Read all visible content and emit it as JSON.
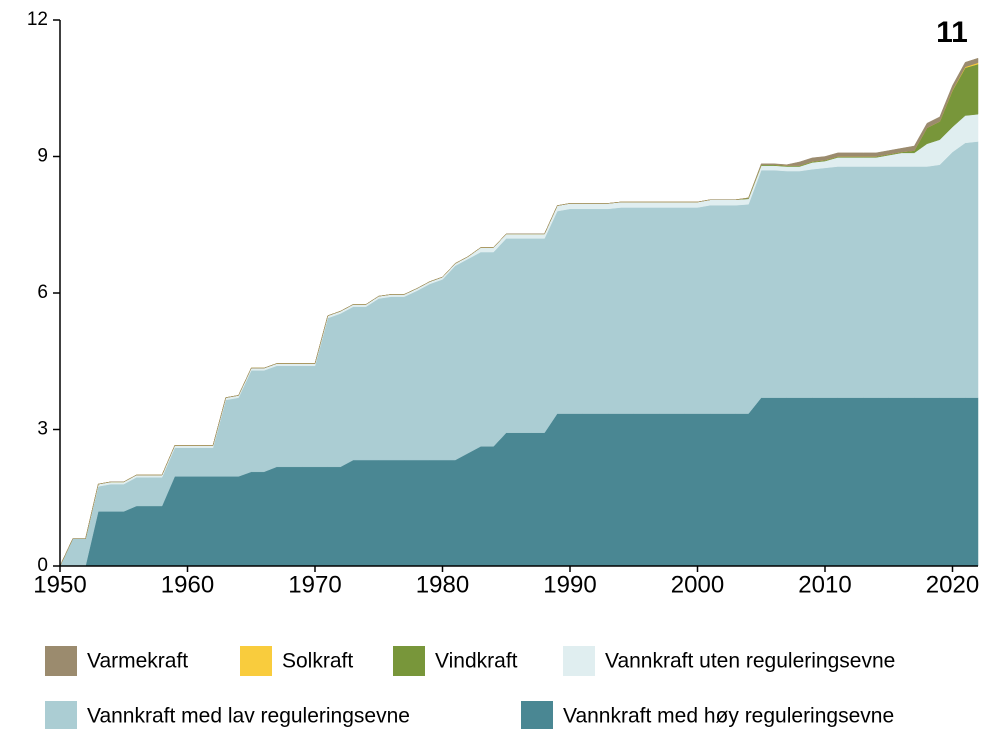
{
  "chart_data": {
    "type": "stacked_area",
    "annotation": "11",
    "x": [
      1950,
      1951,
      1952,
      1953,
      1954,
      1955,
      1956,
      1957,
      1958,
      1959,
      1960,
      1961,
      1962,
      1963,
      1964,
      1965,
      1966,
      1967,
      1968,
      1969,
      1970,
      1971,
      1972,
      1973,
      1974,
      1975,
      1976,
      1977,
      1978,
      1979,
      1980,
      1981,
      1982,
      1983,
      1984,
      1985,
      1986,
      1987,
      1988,
      1989,
      1990,
      1991,
      1992,
      1993,
      1994,
      1995,
      1996,
      1997,
      1998,
      1999,
      2000,
      2001,
      2002,
      2003,
      2004,
      2005,
      2006,
      2007,
      2008,
      2009,
      2010,
      2011,
      2012,
      2013,
      2014,
      2015,
      2016,
      2017,
      2018,
      2019,
      2020,
      2021,
      2022
    ],
    "series": [
      {
        "name": "Varmekraft",
        "color": "#9b8b6e",
        "values": [
          0,
          0,
          0,
          0,
          0,
          0,
          0,
          0,
          0,
          0,
          0,
          0,
          0,
          0,
          0,
          0,
          0,
          0,
          0,
          0,
          0,
          0,
          0,
          0,
          0,
          0,
          0,
          0,
          0,
          0,
          0,
          0,
          0,
          0,
          0,
          0,
          0,
          0,
          0,
          0,
          0,
          0,
          0,
          0,
          0,
          0,
          0,
          0,
          0,
          0,
          0,
          0,
          0,
          0,
          0,
          0.02,
          0.02,
          0.02,
          0.08,
          0.08,
          0.08,
          0.08,
          0.08,
          0.08,
          0.08,
          0.08,
          0.08,
          0.1,
          0.1,
          0.1,
          0.1,
          0.1,
          0.1
        ]
      },
      {
        "name": "Solkraft",
        "color": "#f9cc3d",
        "values": [
          0,
          0,
          0,
          0,
          0,
          0,
          0,
          0,
          0,
          0,
          0,
          0,
          0,
          0,
          0,
          0,
          0,
          0,
          0,
          0,
          0,
          0,
          0,
          0,
          0,
          0,
          0,
          0,
          0,
          0,
          0,
          0,
          0,
          0,
          0,
          0,
          0,
          0,
          0,
          0,
          0,
          0,
          0,
          0,
          0,
          0,
          0,
          0,
          0,
          0,
          0,
          0,
          0,
          0,
          0,
          0,
          0,
          0,
          0,
          0,
          0,
          0,
          0,
          0,
          0,
          0,
          0,
          0,
          0,
          0,
          0.01,
          0.02,
          0.03
        ]
      },
      {
        "name": "Vindkraft",
        "color": "#78963a",
        "values": [
          0,
          0,
          0,
          0,
          0,
          0,
          0,
          0,
          0,
          0,
          0,
          0,
          0,
          0,
          0,
          0,
          0,
          0,
          0,
          0,
          0,
          0,
          0,
          0,
          0,
          0,
          0,
          0,
          0,
          0,
          0,
          0,
          0,
          0,
          0,
          0,
          0,
          0,
          0,
          0,
          0,
          0,
          0,
          0,
          0,
          0,
          0,
          0,
          0,
          0,
          0,
          0,
          0,
          0,
          0.02,
          0.02,
          0.02,
          0.02,
          0.02,
          0.02,
          0.02,
          0.02,
          0.02,
          0.02,
          0.02,
          0.02,
          0.02,
          0.05,
          0.35,
          0.4,
          0.8,
          1.05,
          1.1
        ]
      },
      {
        "name": "Vannkraft uten reguleringsevne",
        "color": "#e0eef0",
        "values": [
          0,
          0,
          0,
          0.05,
          0.05,
          0.05,
          0.05,
          0.05,
          0.05,
          0.05,
          0.05,
          0.05,
          0.05,
          0.05,
          0.05,
          0.05,
          0.05,
          0.05,
          0.05,
          0.05,
          0.05,
          0.05,
          0.05,
          0.05,
          0.05,
          0.05,
          0.05,
          0.05,
          0.05,
          0.05,
          0.05,
          0.05,
          0.05,
          0.1,
          0.1,
          0.1,
          0.1,
          0.1,
          0.1,
          0.12,
          0.12,
          0.12,
          0.12,
          0.12,
          0.12,
          0.12,
          0.12,
          0.12,
          0.12,
          0.12,
          0.12,
          0.12,
          0.12,
          0.12,
          0.12,
          0.1,
          0.1,
          0.1,
          0.1,
          0.15,
          0.15,
          0.2,
          0.2,
          0.2,
          0.2,
          0.25,
          0.3,
          0.3,
          0.5,
          0.55,
          0.55,
          0.6,
          0.6
        ]
      },
      {
        "name": "Vannkraft med lav reguleringsevne",
        "color": "#abcdd3",
        "values": [
          0,
          0.6,
          0.6,
          0.55,
          0.6,
          0.6,
          0.63,
          0.63,
          0.63,
          0.63,
          0.63,
          0.63,
          0.63,
          1.68,
          1.73,
          2.23,
          2.23,
          2.22,
          2.22,
          2.22,
          2.22,
          3.27,
          3.37,
          3.37,
          3.37,
          3.55,
          3.59,
          3.59,
          3.72,
          3.87,
          3.97,
          4.27,
          4.27,
          4.27,
          4.27,
          4.27,
          4.27,
          4.27,
          4.27,
          4.45,
          4.5,
          4.5,
          4.5,
          4.5,
          4.53,
          4.53,
          4.53,
          4.53,
          4.53,
          4.53,
          4.53,
          4.58,
          4.58,
          4.58,
          4.6,
          5.0,
          5.0,
          4.98,
          4.98,
          5.02,
          5.05,
          5.08,
          5.08,
          5.08,
          5.08,
          5.08,
          5.08,
          5.08,
          5.08,
          5.12,
          5.4,
          5.6,
          5.63
        ]
      },
      {
        "name": "Vannkraft med høy reguleringsevne",
        "color": "#4a8793",
        "values": [
          0,
          0,
          0,
          1.2,
          1.2,
          1.2,
          1.32,
          1.32,
          1.32,
          1.97,
          1.97,
          1.97,
          1.97,
          1.97,
          1.97,
          2.07,
          2.07,
          2.18,
          2.18,
          2.18,
          2.18,
          2.18,
          2.18,
          2.33,
          2.33,
          2.33,
          2.33,
          2.33,
          2.33,
          2.33,
          2.33,
          2.33,
          2.48,
          2.63,
          2.63,
          2.93,
          2.93,
          2.93,
          2.93,
          3.35,
          3.35,
          3.35,
          3.35,
          3.35,
          3.35,
          3.35,
          3.35,
          3.35,
          3.35,
          3.35,
          3.35,
          3.35,
          3.35,
          3.35,
          3.35,
          3.7,
          3.7,
          3.7,
          3.7,
          3.7,
          3.7,
          3.7,
          3.7,
          3.7,
          3.7,
          3.7,
          3.7,
          3.7,
          3.7,
          3.7,
          3.7,
          3.7,
          3.7
        ]
      }
    ],
    "xlim": [
      1950,
      2022
    ],
    "xticks": [
      1950,
      1960,
      1970,
      1980,
      1990,
      2000,
      2010,
      2020
    ],
    "ylim": [
      0,
      12
    ],
    "yticks": [
      0,
      3,
      6,
      9,
      12
    ],
    "grid": false
  }
}
